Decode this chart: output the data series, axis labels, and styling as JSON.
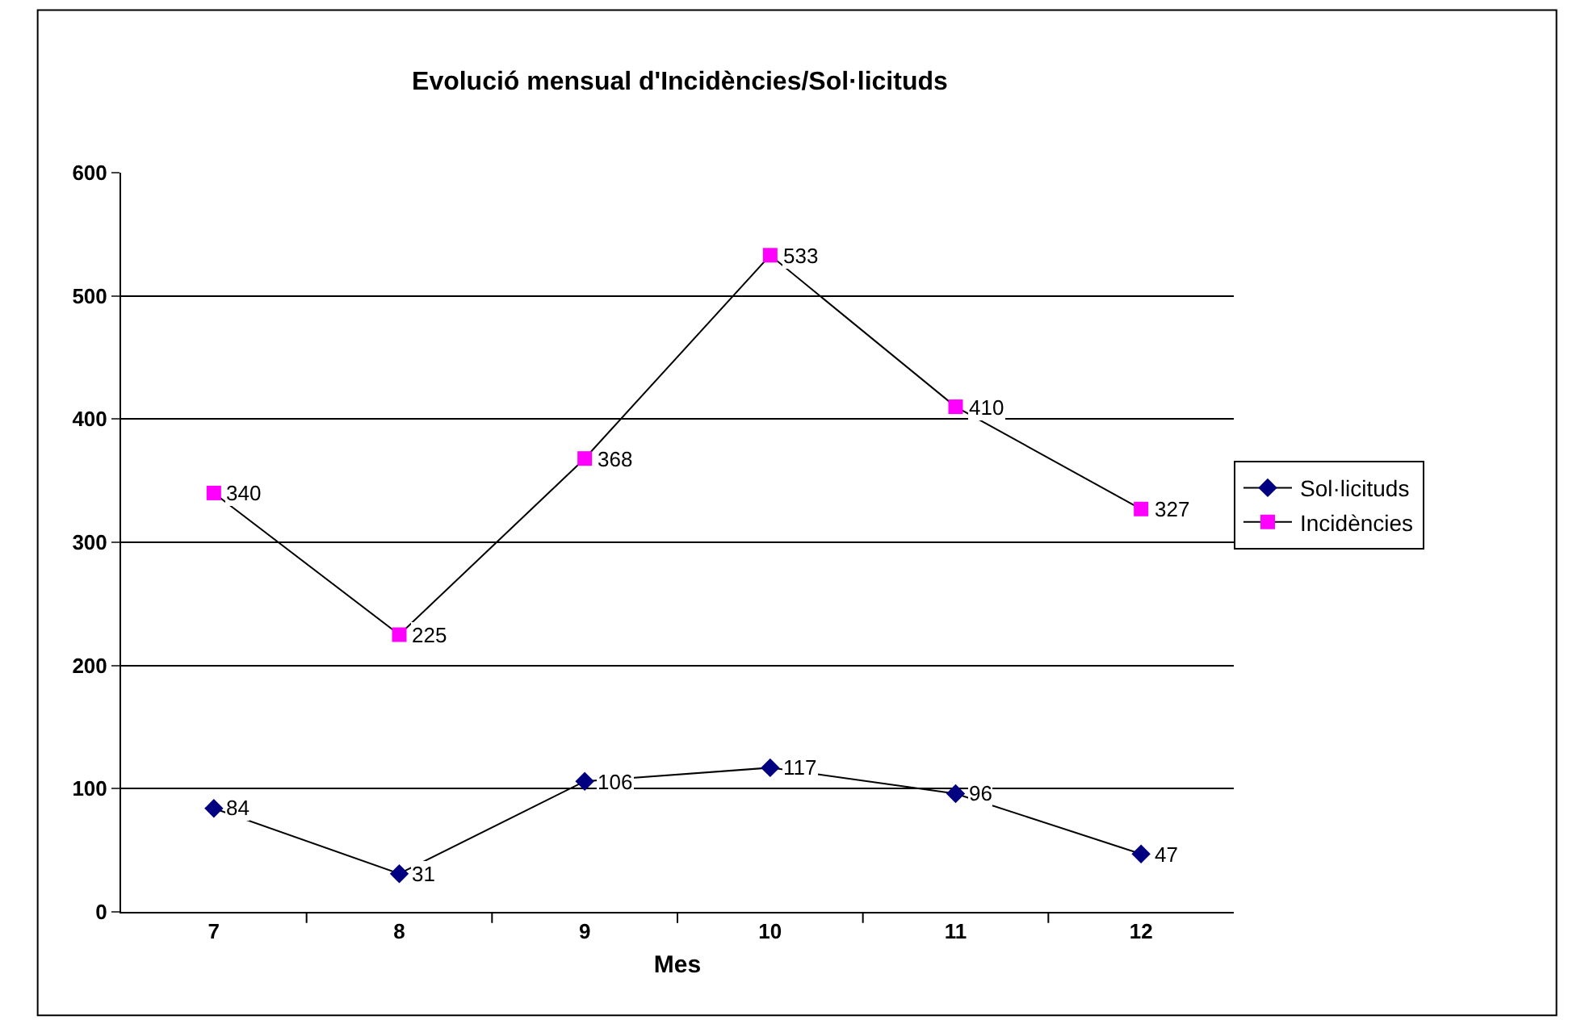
{
  "chart_data": {
    "type": "line",
    "title": "Evolució mensual d'Incidències/Sol·licituds",
    "xlabel": "Mes",
    "categories": [
      "7",
      "8",
      "9",
      "10",
      "11",
      "12"
    ],
    "series": [
      {
        "name": "Sol·licituds",
        "color": "#000080",
        "marker": "diamond",
        "values": [
          84,
          31,
          106,
          117,
          96,
          47
        ]
      },
      {
        "name": "Incidències",
        "color": "#ff00ff",
        "marker": "square",
        "values": [
          340,
          225,
          368,
          533,
          410,
          327
        ]
      }
    ],
    "ylim": [
      0,
      600
    ],
    "yticks": [
      0,
      100,
      200,
      300,
      400,
      500,
      600
    ],
    "grid": "y",
    "legend": "right",
    "data_labels": true
  }
}
